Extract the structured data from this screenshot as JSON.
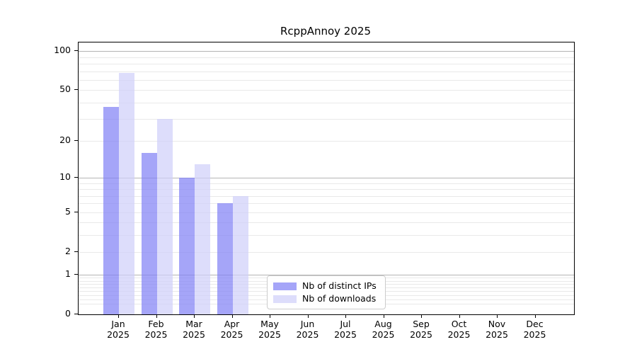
{
  "title": "RcppAnnoy 2025",
  "chart_data": {
    "type": "bar",
    "title": "RcppAnnoy 2025",
    "categories": [
      "Jan 2025",
      "Feb 2025",
      "Mar 2025",
      "Apr 2025",
      "May 2025",
      "Jun 2025",
      "Jul 2025",
      "Aug 2025",
      "Sep 2025",
      "Oct 2025",
      "Nov 2025",
      "Dec 2025"
    ],
    "series": [
      {
        "name": "Nb of distinct IPs",
        "color": "rgba(130,130,245,0.72)",
        "values": [
          37,
          16,
          10,
          6,
          0,
          0,
          0,
          0,
          0,
          0,
          0,
          0
        ]
      },
      {
        "name": "Nb of downloads",
        "color": "rgba(208,208,250,0.72)",
        "values": [
          68,
          30,
          13,
          7,
          0,
          0,
          0,
          0,
          0,
          0,
          0,
          0
        ]
      }
    ],
    "xlabel": "",
    "ylabel": "",
    "yscale": "log1p",
    "ylim": [
      0,
      118
    ],
    "yticks": [
      0,
      1,
      2,
      5,
      10,
      20,
      50,
      100
    ],
    "minor_yticks": [
      0.2,
      0.3,
      0.4,
      0.5,
      0.6,
      0.7,
      0.8,
      0.9,
      3,
      4,
      6,
      7,
      8,
      9,
      30,
      40,
      60,
      70,
      80,
      90
    ],
    "major_grid_ticks": [
      1,
      10,
      100
    ],
    "grid": true,
    "legend_position": "lower center"
  },
  "colors": {
    "major_gridline": "#b4b4b4",
    "minor_gridline": "#e9e9e9",
    "axis": "#000000",
    "background": "#ffffff"
  }
}
